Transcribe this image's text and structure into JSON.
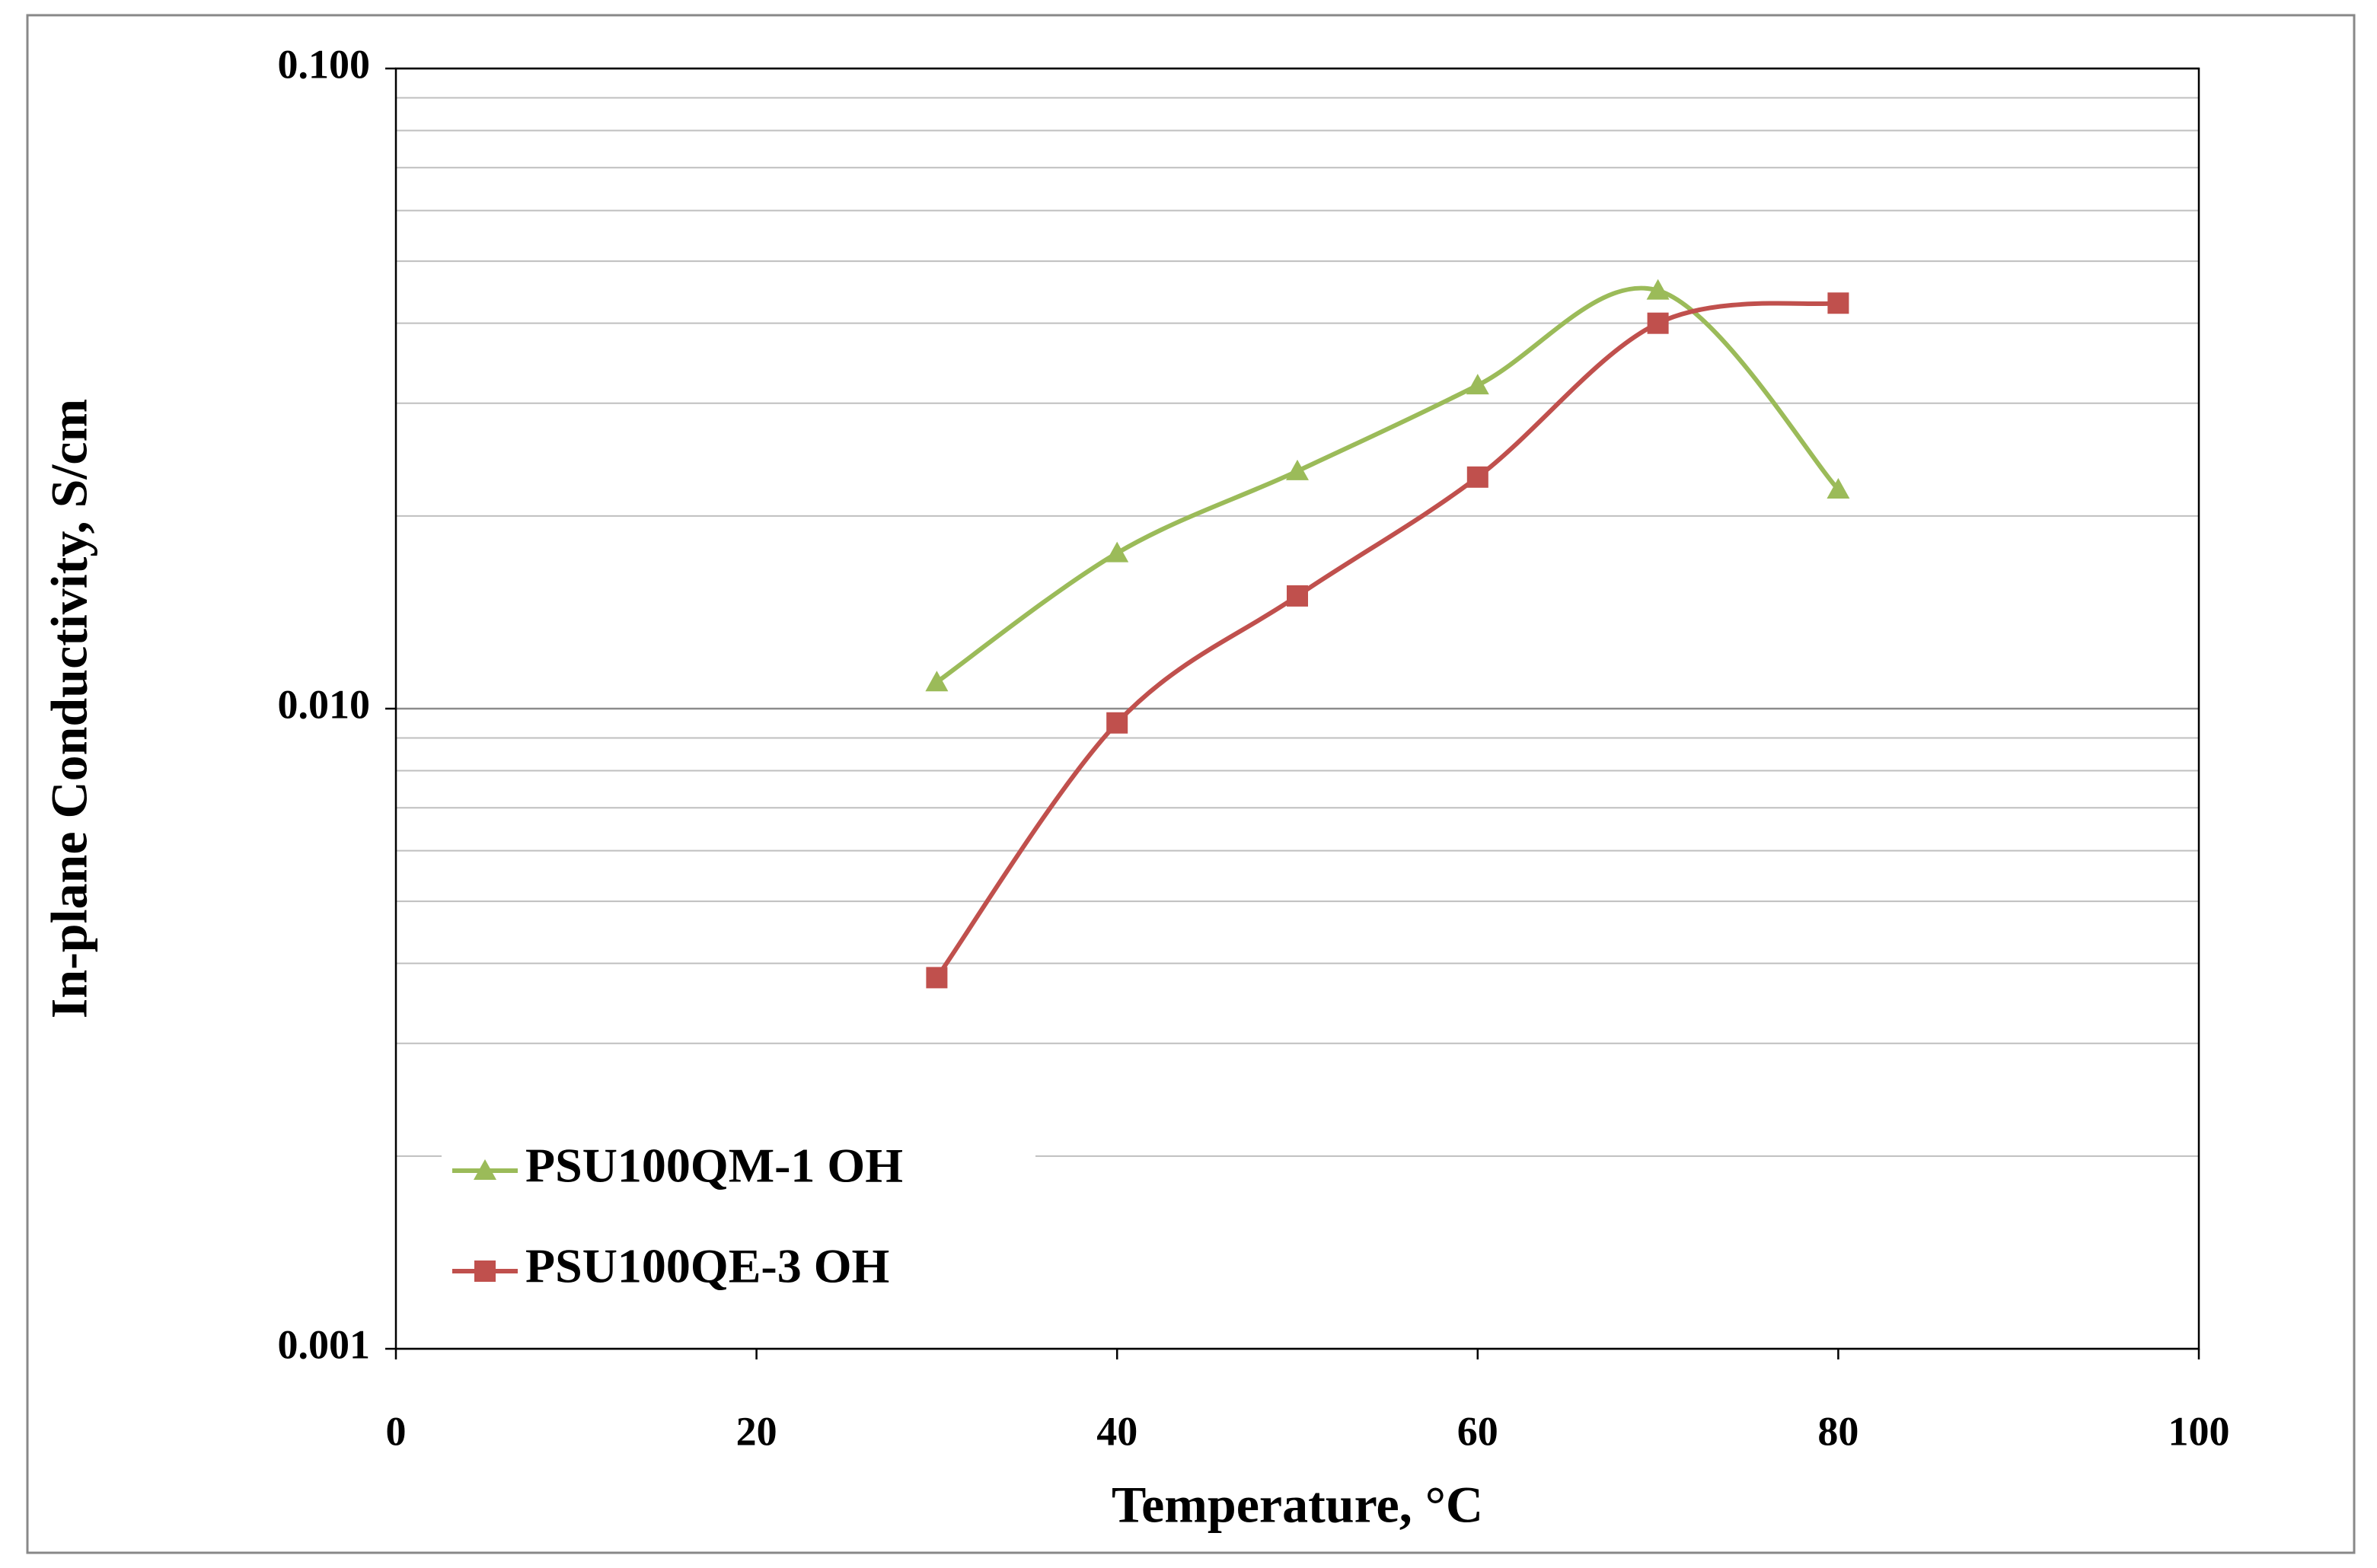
{
  "chart_data": {
    "type": "line",
    "x_label": "Temperature, °C",
    "y_label": "In-plane Conductivity, S/cm",
    "x": [
      30,
      40,
      50,
      60,
      70,
      80
    ],
    "series": [
      {
        "name": "PSU100QM-1 OH",
        "color": "#9bbb59",
        "marker": "triangle",
        "values": [
          0.011,
          0.0175,
          0.0235,
          0.032,
          0.045,
          0.022
        ]
      },
      {
        "name": "PSU100QE-3 OH",
        "color": "#c0504d",
        "marker": "square",
        "values": [
          0.0038,
          0.0095,
          0.015,
          0.023,
          0.04,
          0.043
        ]
      }
    ],
    "xlim": [
      0,
      100
    ],
    "xticks": [
      0,
      20,
      40,
      60,
      80,
      100
    ],
    "ylim": [
      0.001,
      0.1
    ],
    "yticks": [
      0.001,
      {
        "value": 0.01,
        "label": "0.010"
      },
      {
        "value": 0.1,
        "label": "0.100"
      }
    ],
    "log_y": true,
    "grid": true,
    "minor_grid": true,
    "smooth": true,
    "legend": "lower left"
  }
}
